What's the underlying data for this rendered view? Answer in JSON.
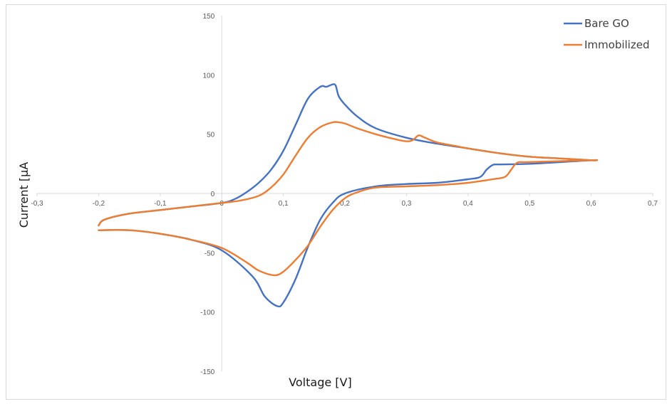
{
  "chart_data": {
    "type": "line",
    "title": "",
    "xlabel": "Voltage [V]",
    "ylabel": "Current [µA",
    "xlim": [
      -0.3,
      0.7
    ],
    "ylim": [
      -150,
      150
    ],
    "x_ticks": [
      -0.3,
      -0.2,
      -0.1,
      0,
      0.1,
      0.2,
      0.3,
      0.4,
      0.5,
      0.6,
      0.7
    ],
    "x_tick_labels": [
      "-0,3",
      "-0,2",
      "-0,1",
      "0",
      "0,1",
      "0,2",
      "0,3",
      "0,4",
      "0,5",
      "0,6",
      "0,7"
    ],
    "y_ticks": [
      150,
      100,
      50,
      0,
      -50,
      -100,
      -150
    ],
    "y_tick_labels": [
      "150",
      "100",
      "50",
      "0",
      "-50",
      "-100",
      "-150"
    ],
    "grid": false,
    "legend_position": "top-right",
    "series": [
      {
        "name": "Bare GO",
        "color": "#4472c4",
        "x": [
          -0.2,
          -0.19,
          -0.15,
          -0.1,
          -0.05,
          0.0,
          0.02,
          0.04,
          0.06,
          0.08,
          0.1,
          0.12,
          0.14,
          0.16,
          0.17,
          0.18,
          0.185,
          0.19,
          0.2,
          0.22,
          0.25,
          0.3,
          0.35,
          0.4,
          0.45,
          0.5,
          0.55,
          0.6,
          0.6,
          0.5,
          0.45,
          0.44,
          0.43,
          0.42,
          0.4,
          0.35,
          0.3,
          0.25,
          0.2,
          0.18,
          0.16,
          0.14,
          0.12,
          0.1,
          0.09,
          0.07,
          0.05,
          0.0,
          -0.05,
          -0.1,
          -0.15,
          -0.2
        ],
        "y": [
          -27,
          -22,
          -17,
          -14,
          -11,
          -8,
          -5,
          1,
          9,
          20,
          36,
          58,
          80,
          90,
          90,
          92,
          91,
          82,
          75,
          65,
          55,
          47,
          42,
          38,
          34,
          31,
          29.5,
          28,
          28,
          25,
          24.5,
          24,
          20,
          14,
          12,
          9,
          8,
          6,
          0,
          -8,
          -22,
          -45,
          -72,
          -92,
          -95,
          -87,
          -70,
          -48,
          -39,
          -34,
          -31,
          -31
        ]
      },
      {
        "name": "Immobilized",
        "color": "#ed7d31",
        "x": [
          -0.2,
          -0.19,
          -0.15,
          -0.1,
          -0.05,
          0.0,
          0.03,
          0.06,
          0.08,
          0.1,
          0.12,
          0.14,
          0.16,
          0.18,
          0.19,
          0.2,
          0.22,
          0.25,
          0.28,
          0.3,
          0.31,
          0.32,
          0.33,
          0.35,
          0.38,
          0.4,
          0.45,
          0.5,
          0.55,
          0.6,
          0.6,
          0.5,
          0.48,
          0.47,
          0.46,
          0.44,
          0.4,
          0.35,
          0.3,
          0.25,
          0.22,
          0.2,
          0.18,
          0.16,
          0.14,
          0.12,
          0.1,
          0.085,
          0.06,
          0.04,
          0.0,
          -0.05,
          -0.1,
          -0.15,
          -0.2
        ],
        "y": [
          -27,
          -22,
          -17,
          -14,
          -11,
          -8,
          -6,
          -2,
          5,
          16,
          32,
          47,
          56,
          60,
          60,
          59,
          55,
          50,
          46,
          44,
          45,
          49,
          47,
          43,
          40,
          38,
          34,
          31,
          29.5,
          28,
          28,
          26.5,
          26,
          20,
          14,
          12,
          9,
          7,
          6,
          5,
          1,
          -4,
          -14,
          -28,
          -44,
          -56,
          -66,
          -69,
          -65,
          -58,
          -46,
          -39,
          -34,
          -31,
          -31
        ]
      }
    ]
  }
}
